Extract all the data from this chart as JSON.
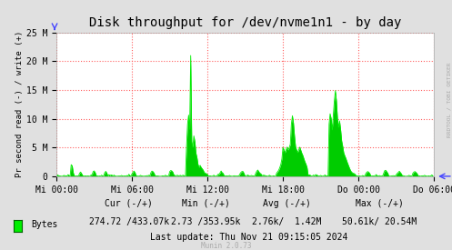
{
  "title": "Disk throughput for /dev/nvme1n1 - by day",
  "ylabel": "Pr second read (-) / write (+)",
  "background_color": "#e0e0e0",
  "plot_bg_color": "#ffffff",
  "grid_color": "#ff8080",
  "line_color": "#00ee00",
  "fill_color": "#00cc00",
  "ylim": [
    0,
    25000000
  ],
  "yticks": [
    0,
    5000000,
    10000000,
    15000000,
    20000000,
    25000000
  ],
  "ytick_labels": [
    "0",
    "5 M",
    "10 M",
    "15 M",
    "20 M",
    "25 M"
  ],
  "xtick_labels": [
    "Mi 00:00",
    "Mi 06:00",
    "Mi 12:00",
    "Mi 18:00",
    "Do 00:00",
    "Do 06:00"
  ],
  "legend_label": "Bytes",
  "cur": "274.72 /433.07k",
  "min_val": "2.73 /353.95k",
  "avg_val": "2.76k/  1.42M",
  "max_val": "50.61k/ 20.54M",
  "last_update": "Last update: Thu Nov 21 09:15:05 2024",
  "munin_version": "Munin 2.0.73",
  "rrdtool_label": "RRDTOOL / TOBI OETIKER",
  "title_fontsize": 10,
  "axis_fontsize": 7,
  "legend_fontsize": 7
}
